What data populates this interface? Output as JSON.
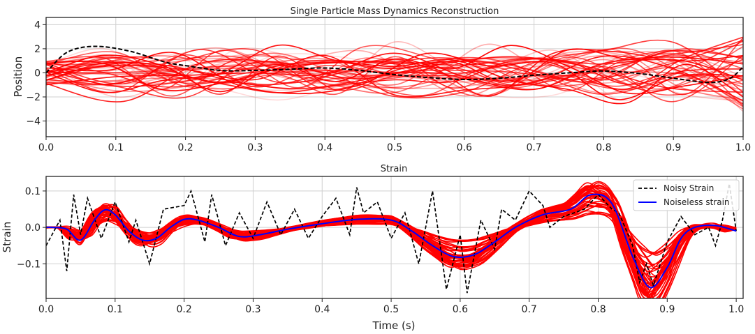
{
  "chart_data": [
    {
      "type": "line",
      "title": "Single Particle Mass Dynamics Reconstruction",
      "xlabel": "",
      "ylabel": "Position",
      "xlim": [
        0.0,
        1.0
      ],
      "ylim": [
        -5.3,
        4.6
      ],
      "xticks": [
        "0.0",
        "0.1",
        "0.2",
        "0.3",
        "0.4",
        "0.5",
        "0.6",
        "0.7",
        "0.8",
        "0.9",
        "1.0"
      ],
      "yticks": [
        "4",
        "2",
        "0",
        "−2",
        "−4"
      ],
      "ytick_values": [
        4,
        2,
        0,
        -2,
        -4
      ],
      "grid": true,
      "colors": {
        "samples": "#ff0000",
        "truth": "#000000"
      },
      "truth": {
        "style": "dashed",
        "x": [
          0.0,
          0.03,
          0.07,
          0.12,
          0.17,
          0.2,
          0.25,
          0.3,
          0.35,
          0.4,
          0.45,
          0.5,
          0.55,
          0.6,
          0.65,
          0.7,
          0.75,
          0.8,
          0.85,
          0.9,
          0.95,
          0.98,
          1.0
        ],
        "y": [
          0.0,
          1.7,
          2.2,
          1.8,
          0.9,
          0.6,
          0.2,
          0.2,
          0.3,
          0.4,
          0.2,
          -0.15,
          -0.4,
          -0.55,
          -0.45,
          -0.2,
          0.0,
          0.15,
          -0.05,
          -0.45,
          -0.8,
          -0.5,
          0.5
        ]
      },
      "samples": {
        "count": 44,
        "amplitude_range": [
          -4.2,
          4.2
        ]
      }
    },
    {
      "type": "line",
      "title": "Strain",
      "xlabel": "Time (s)",
      "ylabel": "Strain",
      "xlim": [
        0.0,
        1.01
      ],
      "ylim": [
        -0.195,
        0.14
      ],
      "xticks": [
        "0.0",
        "0.1",
        "0.2",
        "0.3",
        "0.4",
        "0.5",
        "0.6",
        "0.7",
        "0.8",
        "0.9",
        "1.0"
      ],
      "yticks": [
        "0.1",
        "0.0",
        "−0.1"
      ],
      "ytick_values": [
        0.1,
        0.0,
        -0.1
      ],
      "grid": true,
      "legend": {
        "placement": "top-right",
        "entries": [
          {
            "label": "Noisy Strain",
            "color": "#000000",
            "style": "dashed"
          },
          {
            "label": "Noiseless strain",
            "color": "#0000ff",
            "style": "solid"
          }
        ]
      },
      "noiseless": {
        "x": [
          0.0,
          0.01,
          0.03,
          0.05,
          0.07,
          0.085,
          0.1,
          0.12,
          0.14,
          0.16,
          0.18,
          0.2,
          0.22,
          0.25,
          0.28,
          0.31,
          0.35,
          0.4,
          0.45,
          0.5,
          0.53,
          0.56,
          0.59,
          0.62,
          0.65,
          0.68,
          0.72,
          0.76,
          0.79,
          0.82,
          0.85,
          0.875,
          0.9,
          0.92,
          0.94,
          0.97,
          1.0
        ],
        "y": [
          0.0,
          0.0,
          -0.005,
          -0.035,
          0.02,
          0.048,
          0.035,
          -0.01,
          -0.035,
          -0.03,
          0.0,
          0.022,
          0.02,
          0.0,
          -0.025,
          -0.02,
          -0.005,
          0.01,
          0.022,
          0.02,
          -0.01,
          -0.05,
          -0.08,
          -0.075,
          -0.04,
          0.0,
          0.035,
          0.05,
          0.09,
          0.065,
          -0.08,
          -0.165,
          -0.11,
          -0.03,
          0.0,
          0.005,
          -0.01
        ]
      },
      "noisy": {
        "x": [
          0.0,
          0.02,
          0.03,
          0.04,
          0.05,
          0.06,
          0.08,
          0.1,
          0.12,
          0.13,
          0.15,
          0.17,
          0.2,
          0.21,
          0.23,
          0.24,
          0.26,
          0.28,
          0.3,
          0.32,
          0.34,
          0.36,
          0.38,
          0.4,
          0.42,
          0.44,
          0.45,
          0.46,
          0.48,
          0.5,
          0.52,
          0.54,
          0.56,
          0.58,
          0.6,
          0.61,
          0.63,
          0.65,
          0.66,
          0.68,
          0.7,
          0.72,
          0.73,
          0.75,
          0.78,
          0.8,
          0.82,
          0.83,
          0.85,
          0.86,
          0.87,
          0.88,
          0.9,
          0.92,
          0.94,
          0.96,
          0.97,
          0.98,
          0.99,
          1.0
        ],
        "y": [
          -0.05,
          0.02,
          -0.12,
          0.09,
          -0.02,
          0.08,
          -0.03,
          0.07,
          -0.04,
          0.02,
          -0.1,
          0.05,
          0.06,
          0.1,
          -0.04,
          0.09,
          -0.05,
          0.04,
          -0.03,
          0.07,
          -0.02,
          0.05,
          -0.03,
          0.03,
          0.08,
          -0.02,
          0.11,
          0.04,
          0.07,
          -0.03,
          0.04,
          -0.1,
          0.1,
          -0.17,
          -0.02,
          -0.18,
          0.02,
          -0.06,
          0.05,
          0.02,
          0.1,
          0.06,
          0.0,
          0.03,
          0.05,
          0.09,
          0.05,
          0.04,
          -0.05,
          -0.15,
          -0.1,
          -0.16,
          -0.04,
          0.03,
          -0.02,
          0.0,
          -0.05,
          0.02,
          0.12,
          -0.01
        ]
      },
      "samples": {
        "count": 40
      }
    }
  ]
}
